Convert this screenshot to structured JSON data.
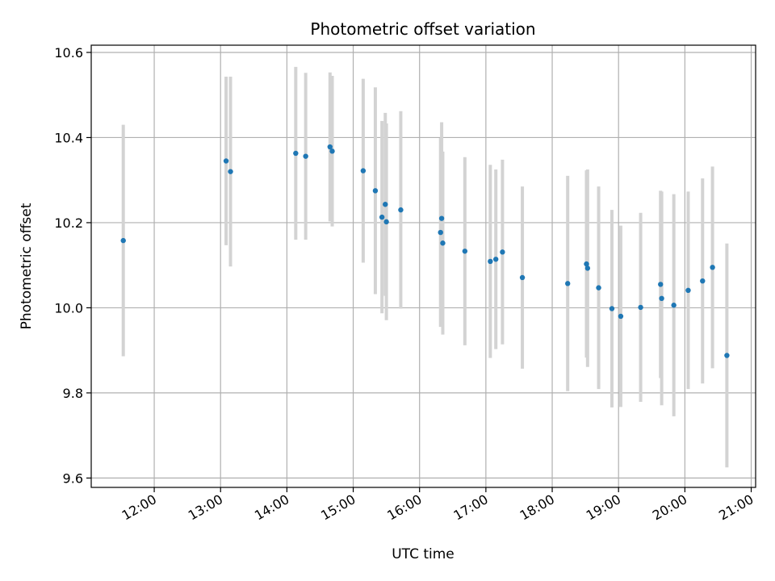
{
  "chart_data": {
    "type": "scatter",
    "title": "Photometric offset variation",
    "xlabel": "UTC time",
    "ylabel": "Photometric offset",
    "xlim": [
      "11:03",
      "21:04"
    ],
    "ylim": [
      9.578,
      10.617
    ],
    "x_ticks": [
      "12:00",
      "13:00",
      "14:00",
      "15:00",
      "16:00",
      "17:00",
      "18:00",
      "19:00",
      "20:00",
      "21:00"
    ],
    "y_ticks": [
      "9.6",
      "9.8",
      "10.0",
      "10.2",
      "10.4",
      "10.6"
    ],
    "grid": true,
    "point_color": "#1f77b4",
    "errorbar_color": "#d3d3d3",
    "series": [
      {
        "points": [
          {
            "x": "11:32",
            "y": 10.158,
            "yerr": 0.272
          },
          {
            "x": "13:05",
            "y": 10.345,
            "yerr": 0.198
          },
          {
            "x": "13:09",
            "y": 10.32,
            "yerr": 0.223
          },
          {
            "x": "14:08",
            "y": 10.363,
            "yerr": 0.203
          },
          {
            "x": "14:17",
            "y": 10.356,
            "yerr": 0.196
          },
          {
            "x": "14:39",
            "y": 10.378,
            "yerr": 0.175
          },
          {
            "x": "14:41",
            "y": 10.368,
            "yerr": 0.177
          },
          {
            "x": "15:09",
            "y": 10.322,
            "yerr": 0.216
          },
          {
            "x": "15:20",
            "y": 10.275,
            "yerr": 0.243
          },
          {
            "x": "15:26",
            "y": 10.213,
            "yerr": 0.226
          },
          {
            "x": "15:29",
            "y": 10.243,
            "yerr": 0.215
          },
          {
            "x": "15:30",
            "y": 10.202,
            "yerr": 0.231
          },
          {
            "x": "15:43",
            "y": 10.23,
            "yerr": 0.232
          },
          {
            "x": "16:19",
            "y": 10.177,
            "yerr": 0.222
          },
          {
            "x": "16:20",
            "y": 10.21,
            "yerr": 0.226
          },
          {
            "x": "16:21",
            "y": 10.152,
            "yerr": 0.215
          },
          {
            "x": "16:41",
            "y": 10.133,
            "yerr": 0.221
          },
          {
            "x": "17:04",
            "y": 10.109,
            "yerr": 0.227
          },
          {
            "x": "17:09",
            "y": 10.114,
            "yerr": 0.211
          },
          {
            "x": "17:15",
            "y": 10.131,
            "yerr": 0.217
          },
          {
            "x": "17:33",
            "y": 10.071,
            "yerr": 0.214
          },
          {
            "x": "18:14",
            "y": 10.057,
            "yerr": 0.253
          },
          {
            "x": "18:31",
            "y": 10.103,
            "yerr": 0.22
          },
          {
            "x": "18:32",
            "y": 10.093,
            "yerr": 0.232
          },
          {
            "x": "18:42",
            "y": 10.047,
            "yerr": 0.238
          },
          {
            "x": "18:54",
            "y": 9.998,
            "yerr": 0.232
          },
          {
            "x": "19:02",
            "y": 9.98,
            "yerr": 0.213
          },
          {
            "x": "19:20",
            "y": 10.001,
            "yerr": 0.222
          },
          {
            "x": "19:38",
            "y": 10.055,
            "yerr": 0.22
          },
          {
            "x": "19:39",
            "y": 10.022,
            "yerr": 0.251
          },
          {
            "x": "19:50",
            "y": 10.006,
            "yerr": 0.261
          },
          {
            "x": "20:03",
            "y": 10.041,
            "yerr": 0.232
          },
          {
            "x": "20:16",
            "y": 10.063,
            "yerr": 0.241
          },
          {
            "x": "20:25",
            "y": 10.095,
            "yerr": 0.237
          },
          {
            "x": "20:38",
            "y": 9.888,
            "yerr": 0.263
          }
        ]
      }
    ]
  }
}
